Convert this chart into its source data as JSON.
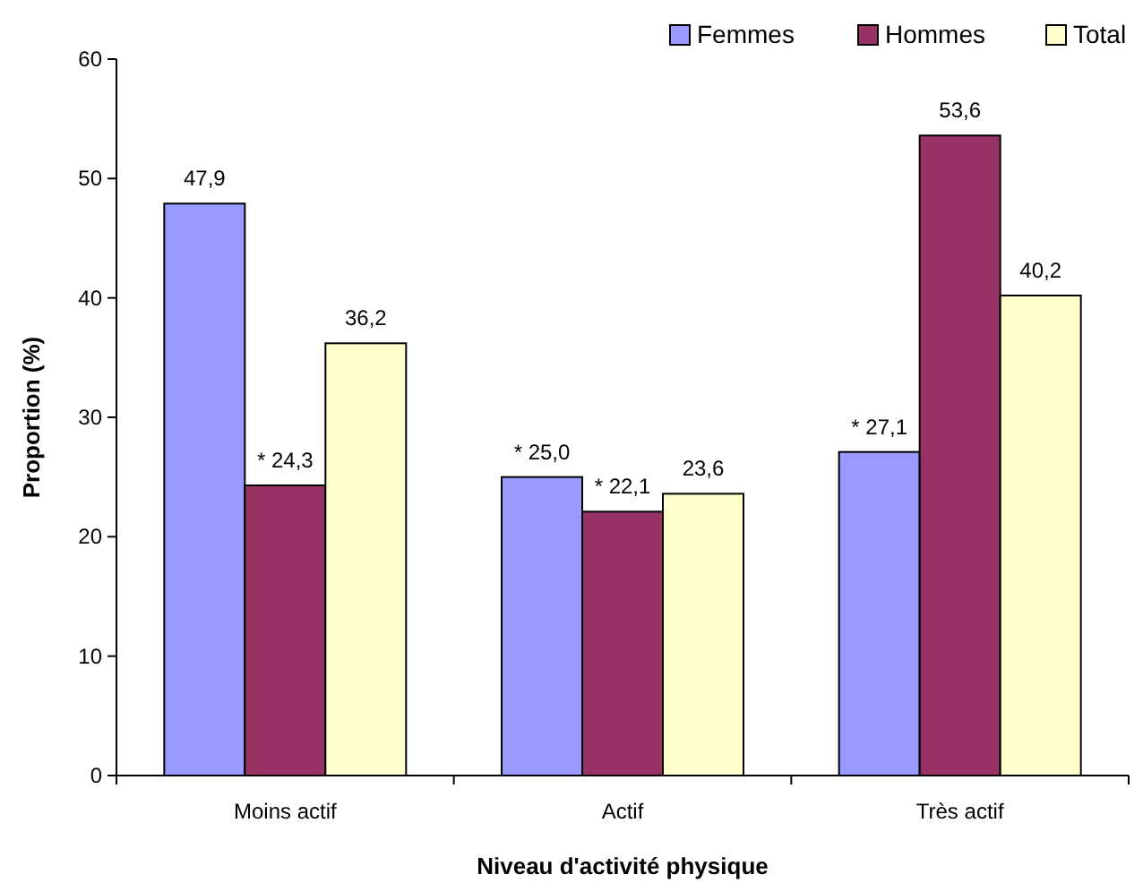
{
  "chart_data": {
    "type": "bar",
    "xlabel": "Niveau d'activité physique",
    "ylabel": "Proportion (%)",
    "categories": [
      "Moins actif",
      "Actif",
      "Très actif"
    ],
    "series": [
      {
        "name": "Femmes",
        "color": "#9999ff",
        "values": [
          47.9,
          25.0,
          27.1
        ],
        "value_labels": [
          "47,9",
          "* 25,0",
          "* 27,1"
        ]
      },
      {
        "name": "Hommes",
        "color": "#993366",
        "values": [
          24.3,
          22.1,
          53.6
        ],
        "value_labels": [
          "* 24,3",
          "* 22,1",
          "53,6"
        ]
      },
      {
        "name": "Total",
        "color": "#ffffcc",
        "values": [
          36.2,
          23.6,
          40.2
        ],
        "value_labels": [
          "36,2",
          "23,6",
          "40,2"
        ]
      }
    ],
    "ylim": [
      0,
      60
    ],
    "yticks": [
      0,
      10,
      20,
      30,
      40,
      50,
      60
    ],
    "grid": false,
    "legend": "top right"
  }
}
